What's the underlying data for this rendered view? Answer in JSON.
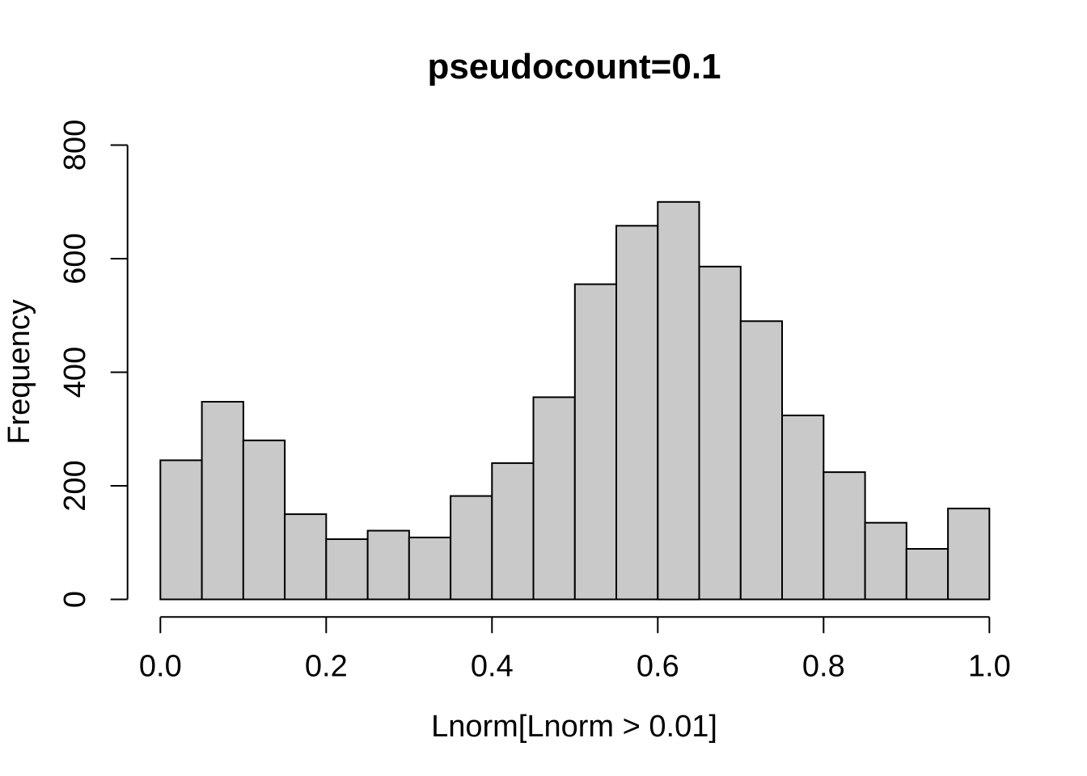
{
  "chart_data": {
    "type": "bar",
    "subtype": "histogram",
    "title": "pseudocount=0.1",
    "xlabel": "Lnorm[Lnorm > 0.01]",
    "ylabel": "Frequency",
    "bins": {
      "start": 0.0,
      "width": 0.05,
      "count": 20
    },
    "values": [
      245,
      348,
      280,
      150,
      106,
      121,
      109,
      182,
      240,
      356,
      555,
      658,
      700,
      586,
      490,
      324,
      224,
      135,
      89,
      160
    ],
    "xlim": [
      0.0,
      1.0
    ],
    "ylim": [
      0,
      800
    ],
    "x_ticks": {
      "values": [
        0.0,
        0.2,
        0.4,
        0.6,
        0.8,
        1.0
      ],
      "labels": [
        "0.0",
        "0.2",
        "0.4",
        "0.6",
        "0.8",
        "1.0"
      ]
    },
    "y_ticks": {
      "values": [
        0,
        200,
        400,
        600,
        800
      ],
      "labels": [
        "0",
        "200",
        "400",
        "600",
        "800"
      ]
    },
    "grid": "off",
    "legend": "none",
    "colors": {
      "bar_fill": "#c9c9c9",
      "bar_stroke": "#000000",
      "axis": "#000000",
      "text": "#000000",
      "background": "#ffffff"
    }
  }
}
